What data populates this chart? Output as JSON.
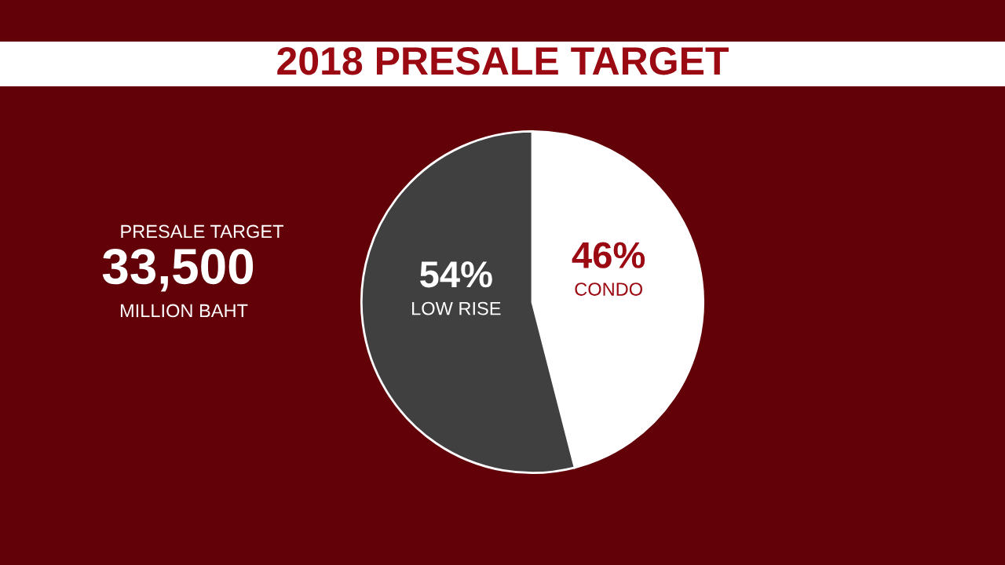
{
  "chart_data": {
    "type": "pie",
    "title": "2018 PRESALE TARGET",
    "categories": [
      "CONDO",
      "LOW RISE"
    ],
    "values": [
      46,
      54
    ],
    "colors": [
      "#ffffff",
      "#404040"
    ],
    "value_labels": [
      "46%",
      "54%"
    ],
    "annotations": [
      "PRESALE TARGET",
      "33,500",
      "MILLION BAHT"
    ],
    "legend": false
  }
}
